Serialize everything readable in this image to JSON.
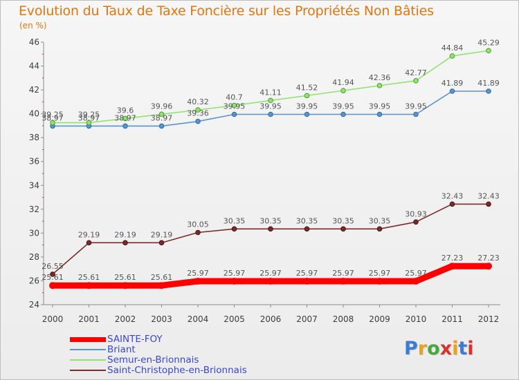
{
  "title": "Evolution du Taux de Taxe Foncière sur les Propriétés Non Bâties",
  "subtitle": "(en %)",
  "logo": {
    "text": "Proxiti",
    "colors": [
      "#3a7bd5",
      "#e8a21c",
      "#49a83d",
      "#d8342b",
      "#e8a21c",
      "#3a7bd5",
      "#d8342b"
    ]
  },
  "chart_data": {
    "type": "line",
    "x": [
      "2000",
      "2001",
      "2002",
      "2003",
      "2004",
      "2005",
      "2006",
      "2007",
      "2008",
      "2009",
      "2010",
      "2011",
      "2012"
    ],
    "ylim": [
      24,
      46
    ],
    "yticks": [
      24,
      26,
      28,
      30,
      32,
      34,
      36,
      38,
      40,
      42,
      44,
      46
    ],
    "grid": false,
    "legend_position": "bottom-left",
    "series": [
      {
        "name": "SAINTE-FOY",
        "color": "#ff0000",
        "values": [
          25.61,
          25.61,
          25.61,
          25.61,
          25.97,
          25.97,
          25.97,
          25.97,
          25.97,
          25.97,
          25.97,
          27.23,
          27.23
        ],
        "labels": [
          "25.61",
          "25.61",
          "25.61",
          "25.61",
          "25.97",
          "25.97",
          "25.97",
          "25.97",
          "25.97",
          "25.97",
          "25.97",
          "27.23",
          "27.23"
        ]
      },
      {
        "name": "Briant",
        "color": "#5b93c9",
        "values": [
          38.97,
          38.97,
          38.97,
          38.97,
          39.36,
          39.95,
          39.95,
          39.95,
          39.95,
          39.95,
          39.95,
          41.89,
          41.89
        ],
        "labels": [
          "38.97",
          "38.97",
          "38.97",
          "38.97",
          "39.36",
          "39.95",
          "39.95",
          "39.95",
          "39.95",
          "39.95",
          "39.95",
          "41.89",
          "41.89"
        ]
      },
      {
        "name": "Semur-en-Brionnais",
        "color": "#8fe36f",
        "values": [
          39.25,
          39.25,
          39.6,
          39.96,
          40.32,
          40.7,
          41.11,
          41.52,
          41.94,
          42.36,
          42.77,
          44.84,
          45.29
        ],
        "labels": [
          "39.25",
          "39.25",
          "39.6",
          "39.96",
          "40.32",
          "40.7",
          "41.11",
          "41.52",
          "41.94",
          "42.36",
          "42.77",
          "44.84",
          "45.29"
        ]
      },
      {
        "name": "Saint-Christophe-en-Brionnais",
        "color": "#7a2a2a",
        "values": [
          26.55,
          29.19,
          29.19,
          29.19,
          30.05,
          30.35,
          30.35,
          30.35,
          30.35,
          30.35,
          30.93,
          32.43,
          32.43
        ],
        "labels": [
          "26.55",
          "29.19",
          "29.19",
          "29.19",
          "30.05",
          "30.35",
          "30.35",
          "30.35",
          "30.35",
          "30.35",
          "30.93",
          "32.43",
          "32.43"
        ]
      }
    ]
  }
}
